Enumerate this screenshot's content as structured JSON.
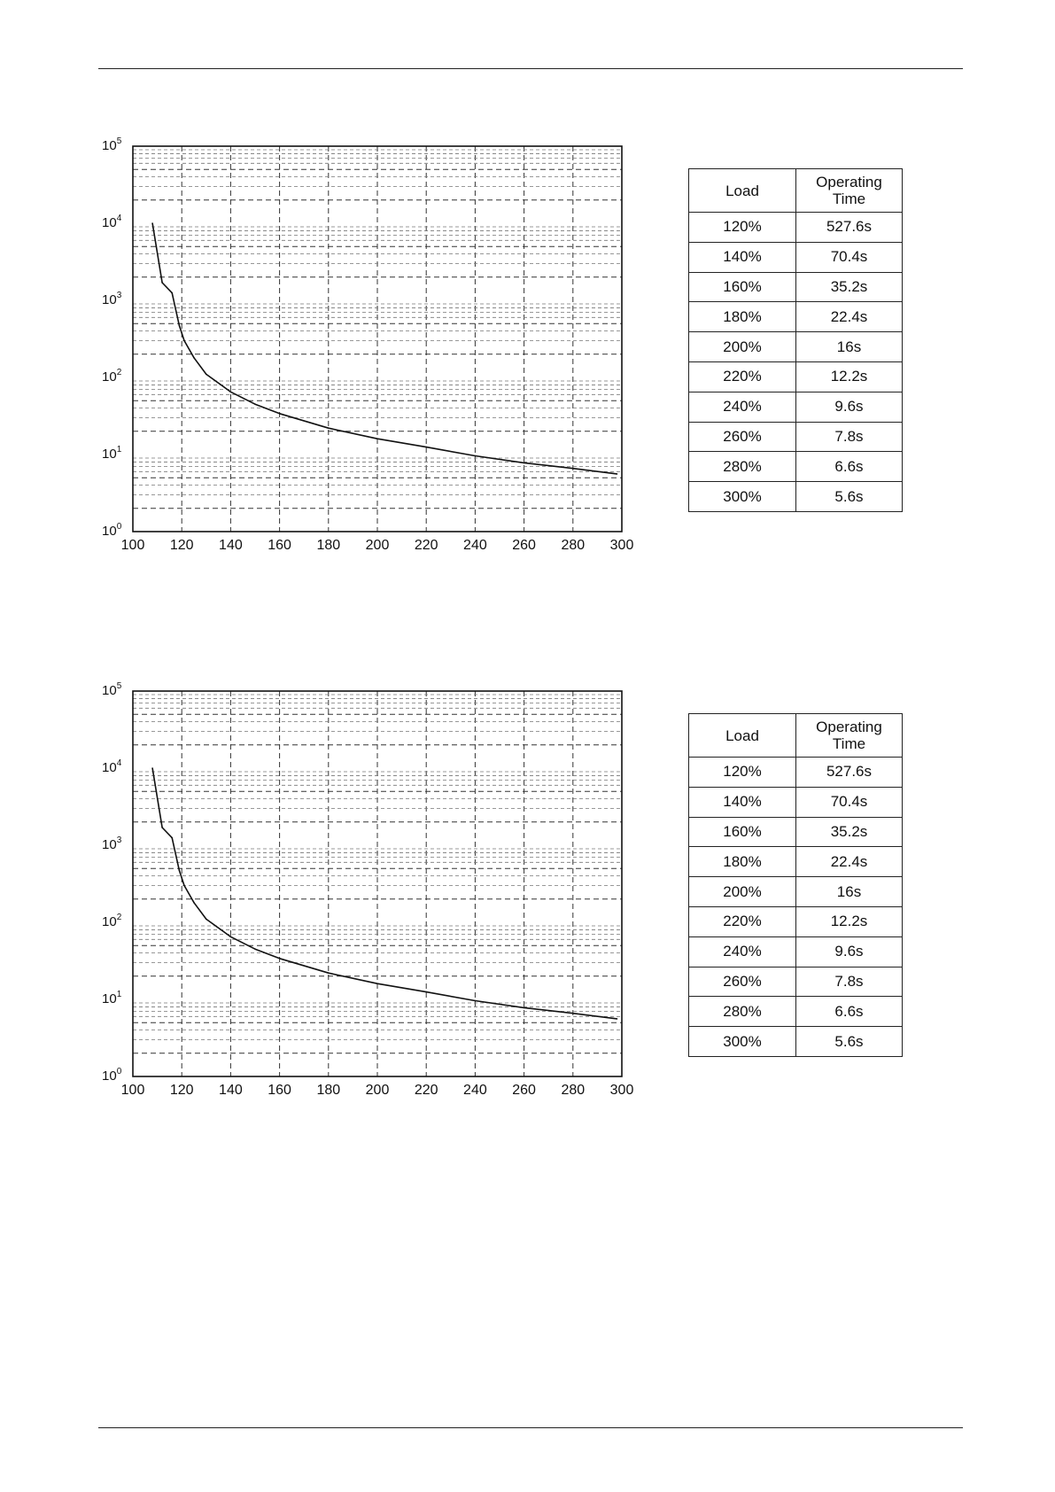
{
  "charts": [
    {
      "chart_data": {
        "type": "line",
        "title": "",
        "xlabel": "",
        "ylabel": "",
        "x_scale": "linear",
        "y_scale": "log",
        "xlim": [
          100,
          300
        ],
        "ylim": [
          1,
          100000
        ],
        "x_ticks": [
          "100",
          "120",
          "140",
          "160",
          "180",
          "200",
          "220",
          "240",
          "260",
          "280",
          "300"
        ],
        "y_ticks": [
          {
            "base": "10",
            "exp": "0"
          },
          {
            "base": "10",
            "exp": "1"
          },
          {
            "base": "10",
            "exp": "2"
          },
          {
            "base": "10",
            "exp": "3"
          },
          {
            "base": "10",
            "exp": "4"
          },
          {
            "base": "10",
            "exp": "5"
          }
        ],
        "grid": true,
        "series": [
          {
            "x": [
              108,
              112,
              116,
              119,
              121,
              125,
              130,
              140,
              150,
              160,
              180,
              200,
              220,
              240,
              260,
              280,
              298
            ],
            "values": [
              10000,
              1700,
              1250,
              470,
              300,
              180,
              110,
              65,
              45,
              34,
              22,
              16,
              12.5,
              9.6,
              7.8,
              6.6,
              5.6
            ]
          }
        ]
      },
      "table": {
        "headers": [
          "Load",
          "Operating\nTime"
        ],
        "rows": [
          [
            "120%",
            "527.6s"
          ],
          [
            "140%",
            "70.4s"
          ],
          [
            "160%",
            "35.2s"
          ],
          [
            "180%",
            "22.4s"
          ],
          [
            "200%",
            "16s"
          ],
          [
            "220%",
            "12.2s"
          ],
          [
            "240%",
            "9.6s"
          ],
          [
            "260%",
            "7.8s"
          ],
          [
            "280%",
            "6.6s"
          ],
          [
            "300%",
            "5.6s"
          ]
        ]
      }
    },
    {
      "chart_data": {
        "type": "line",
        "title": "",
        "xlabel": "",
        "ylabel": "",
        "x_scale": "linear",
        "y_scale": "log",
        "xlim": [
          100,
          300
        ],
        "ylim": [
          1,
          100000
        ],
        "x_ticks": [
          "100",
          "120",
          "140",
          "160",
          "180",
          "200",
          "220",
          "240",
          "260",
          "280",
          "300"
        ],
        "y_ticks": [
          {
            "base": "10",
            "exp": "0"
          },
          {
            "base": "10",
            "exp": "1"
          },
          {
            "base": "10",
            "exp": "2"
          },
          {
            "base": "10",
            "exp": "3"
          },
          {
            "base": "10",
            "exp": "4"
          },
          {
            "base": "10",
            "exp": "5"
          }
        ],
        "grid": true,
        "series": [
          {
            "x": [
              108,
              112,
              116,
              119,
              121,
              125,
              130,
              140,
              150,
              160,
              180,
              200,
              220,
              240,
              260,
              280,
              298
            ],
            "values": [
              10000,
              1700,
              1250,
              470,
              300,
              180,
              110,
              65,
              45,
              34,
              22,
              16,
              12.5,
              9.6,
              7.8,
              6.6,
              5.6
            ]
          }
        ]
      },
      "table": {
        "headers": [
          "Load",
          "Operating\nTime"
        ],
        "rows": [
          [
            "120%",
            "527.6s"
          ],
          [
            "140%",
            "70.4s"
          ],
          [
            "160%",
            "35.2s"
          ],
          [
            "180%",
            "22.4s"
          ],
          [
            "200%",
            "16s"
          ],
          [
            "220%",
            "12.2s"
          ],
          [
            "240%",
            "9.6s"
          ],
          [
            "260%",
            "7.8s"
          ],
          [
            "280%",
            "6.6s"
          ],
          [
            "300%",
            "5.6s"
          ]
        ]
      }
    }
  ]
}
